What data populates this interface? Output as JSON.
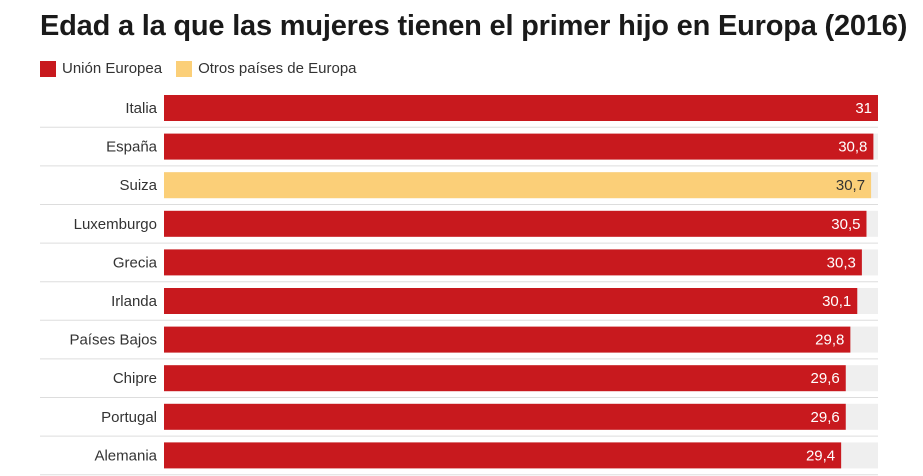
{
  "chart_data": {
    "type": "bar",
    "orientation": "horizontal",
    "title": "Edad a la que las mujeres tienen el primer hijo en Europa (2016)",
    "legend": [
      {
        "name": "Unión Europea",
        "color": "#c8191e"
      },
      {
        "name": "Otros países de Europa",
        "color": "#fbcf78"
      }
    ],
    "xlim": [
      0,
      31
    ],
    "categories": [
      "Italia",
      "España",
      "Suiza",
      "Luxemburgo",
      "Grecia",
      "Irlanda",
      "Países Bajos",
      "Chipre",
      "Portugal",
      "Alemania"
    ],
    "values": [
      31,
      30.8,
      30.7,
      30.5,
      30.3,
      30.1,
      29.8,
      29.6,
      29.6,
      29.4
    ],
    "value_labels": [
      "31",
      "30,8",
      "30,7",
      "30,5",
      "30,3",
      "30,1",
      "29,8",
      "29,6",
      "29,6",
      "29,4"
    ],
    "groups": [
      "Unión Europea",
      "Unión Europea",
      "Otros países de Europa",
      "Unión Europea",
      "Unión Europea",
      "Unión Europea",
      "Unión Europea",
      "Unión Europea",
      "Unión Europea",
      "Unión Europea"
    ]
  },
  "colors": {
    "eu": "#c8191e",
    "other": "#fbcf78",
    "track": "#efefef",
    "separator": "#dddddd"
  }
}
